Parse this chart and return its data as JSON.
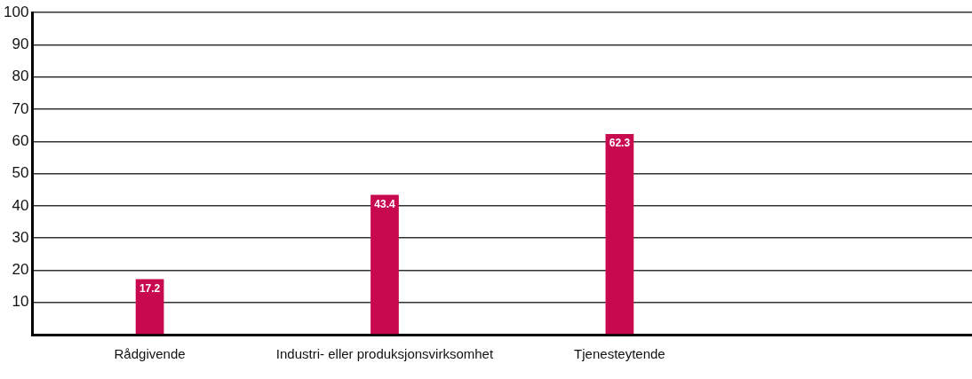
{
  "chart_data": {
    "type": "bar",
    "categories": [
      "Rådgivende",
      "Industri- eller produksjonsvirksomhet",
      "Tjenesteytende",
      null
    ],
    "values": [
      17.2,
      43.4,
      62.3,
      null
    ],
    "color": "#c8084f",
    "ylim": [
      0,
      100
    ],
    "yticks": [
      {
        "value": 0,
        "label": null
      },
      10,
      20,
      30,
      40,
      50,
      60,
      70,
      80,
      90,
      100
    ],
    "grid": "y",
    "data_labels": true,
    "legend": false
  }
}
